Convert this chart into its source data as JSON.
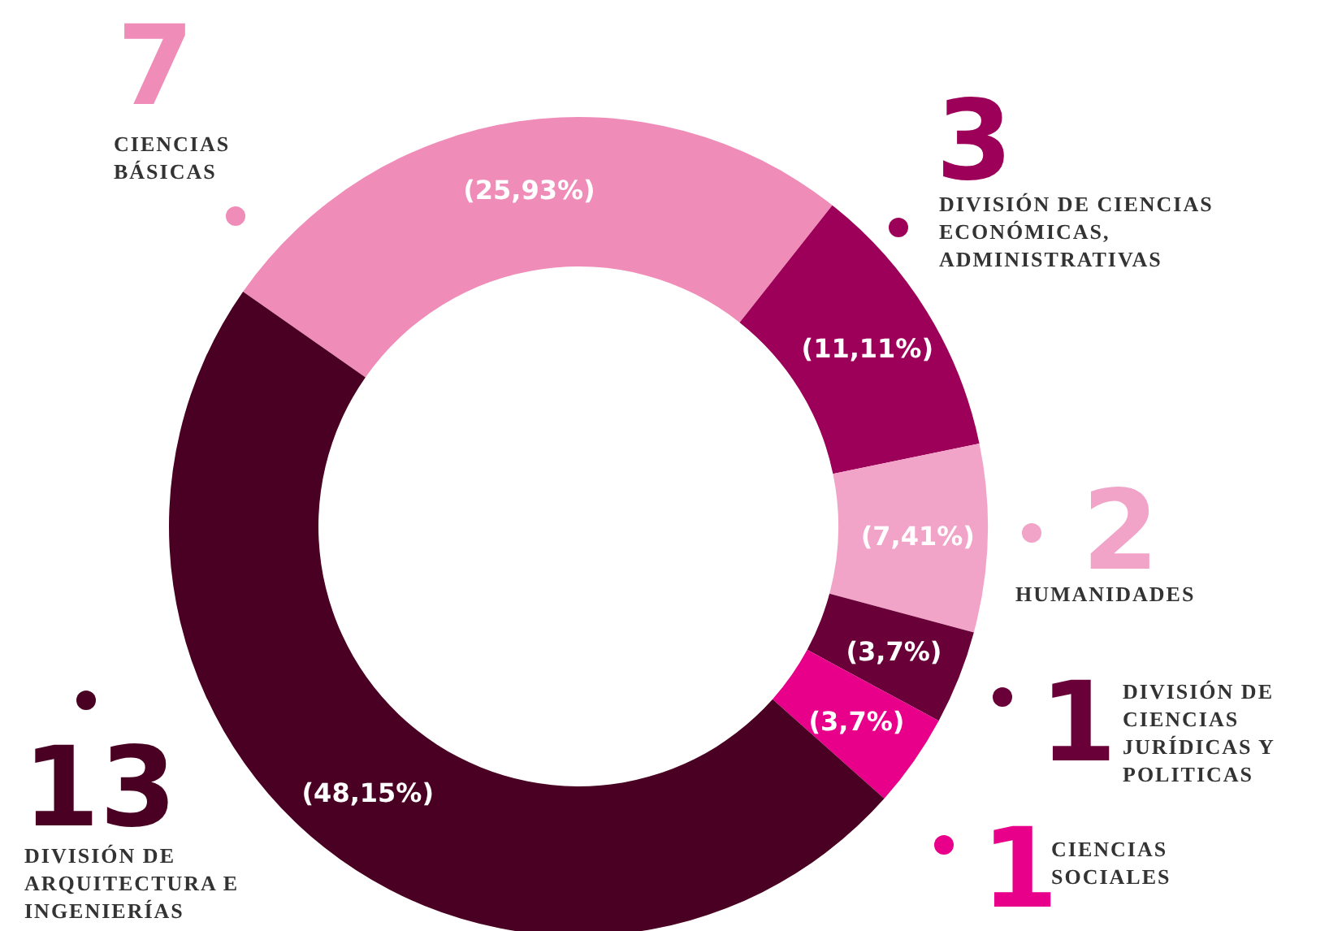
{
  "chart_data": {
    "type": "donut",
    "categories": [
      "CIENCIAS BÁSICAS",
      "DIVISIÓN DE CIENCIAS ECONÓMICAS, ADMINISTRATIVAS",
      "HUMANIDADES",
      "DIVISIÓN DE CIENCIAS JURÍDICAS Y POLITICAS",
      "CIENCIAS SOCIALES",
      "DIVISIÓN DE ARQUITECTURA E INGENIERÍAS"
    ],
    "values": [
      7,
      3,
      2,
      1,
      1,
      13
    ],
    "value_labels": [
      "7",
      "3",
      "2",
      "1",
      "1",
      "13"
    ],
    "annotations": [
      "(25,93%)",
      "(11,11%)",
      "(7,41%)",
      "(3,7%)",
      "(3,7%)",
      "(48,15%)"
    ],
    "colors": [
      "#f08cb8",
      "#9c0058",
      "#f2a3c8",
      "#6a0038",
      "#e8008a",
      "#4a0022"
    ]
  }
}
